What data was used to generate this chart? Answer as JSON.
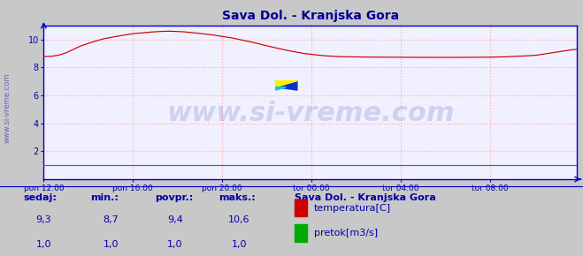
{
  "title": "Sava Dol. - Kranjska Gora",
  "title_color": "#000099",
  "title_fontsize": 10,
  "bg_color": "#c8c8c8",
  "plot_bg_color": "#f0f0ff",
  "grid_color": "#ffb0b0",
  "grid_style": "dotted",
  "axis_color": "#0000cc",
  "tick_color": "#0000aa",
  "watermark_text": "www.si-vreme.com",
  "watermark_color": "#000088",
  "watermark_alpha": 0.13,
  "watermark_fontsize": 22,
  "line_color_temp": "#cc0000",
  "line_color_flow": "#00aa00",
  "ylim": [
    0,
    11
  ],
  "yticks": [
    2,
    4,
    6,
    8,
    10
  ],
  "xtick_labels": [
    "pon 12:00",
    "pon 16:00",
    "pon 20:00",
    "tor 00:00",
    "tor 04:00",
    "tor 08:00"
  ],
  "xtick_positions": [
    0,
    48,
    96,
    144,
    192,
    240
  ],
  "n_points": 288,
  "footer_labels": [
    "sedaj:",
    "min.:",
    "povpr.:",
    "maks.:"
  ],
  "footer_values_temp": [
    "9,3",
    "8,7",
    "9,4",
    "10,6"
  ],
  "footer_values_flow": [
    "1,0",
    "1,0",
    "1,0",
    "1,0"
  ],
  "legend_title": "Sava Dol. - Kranjska Gora",
  "legend_items": [
    "temperatura[C]",
    "pretok[m3/s]"
  ],
  "legend_colors": [
    "#cc0000",
    "#00aa00"
  ],
  "footer_color": "#0000aa",
  "footer_fontsize": 8,
  "sidewater_text": "www.si-vreme.com",
  "sidewater_color": "#0000aa",
  "sidewater_alpha": 0.5,
  "sidewater_fontsize": 6
}
